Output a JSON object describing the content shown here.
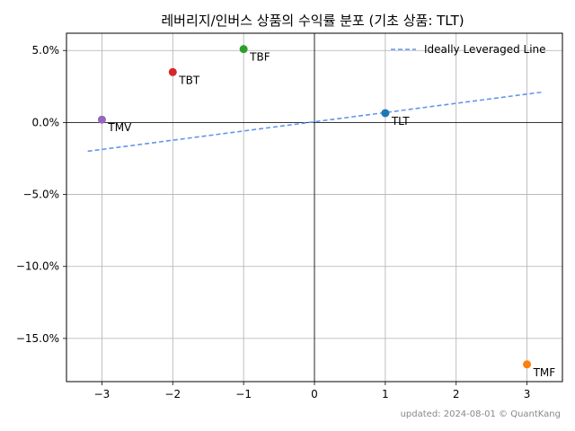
{
  "chart_data": {
    "type": "scatter",
    "title": "레버리지/인버스 상품의 수익률 분포 (기초 상품: TLT)",
    "xlabel": "",
    "ylabel": "",
    "xlim": [
      -3.5,
      3.5
    ],
    "ylim": [
      -18.0,
      6.2
    ],
    "xticks": [
      -3,
      -2,
      -1,
      0,
      1,
      2,
      3
    ],
    "xtick_labels": [
      "−3",
      "−2",
      "−1",
      "0",
      "1",
      "2",
      "3"
    ],
    "yticks": [
      5,
      0,
      -5,
      -10,
      -15
    ],
    "ytick_labels": [
      "5.0%",
      "0.0%",
      "−5.0%",
      "−10.0%",
      "−15.0%"
    ],
    "grid": true,
    "points": [
      {
        "label": "TLT",
        "x": 1,
        "y": 0.65,
        "color": "#1f77b4"
      },
      {
        "label": "TMF",
        "x": 3,
        "y": -16.8,
        "color": "#ff7f0e"
      },
      {
        "label": "TBF",
        "x": -1,
        "y": 5.1,
        "color": "#2ca02c"
      },
      {
        "label": "TBT",
        "x": -2,
        "y": 3.5,
        "color": "#d62728"
      },
      {
        "label": "TMV",
        "x": -3,
        "y": 0.2,
        "color": "#9467bd"
      }
    ],
    "reference_line": {
      "name": "Ideally Leveraged Line",
      "style": "dashed",
      "color": "#6495ed",
      "x": [
        -3.2,
        3.2
      ],
      "y": [
        -2.0,
        2.1
      ]
    },
    "legend_position": "top-right",
    "footer": "updated: 2024-08-01 © QuantKang"
  }
}
